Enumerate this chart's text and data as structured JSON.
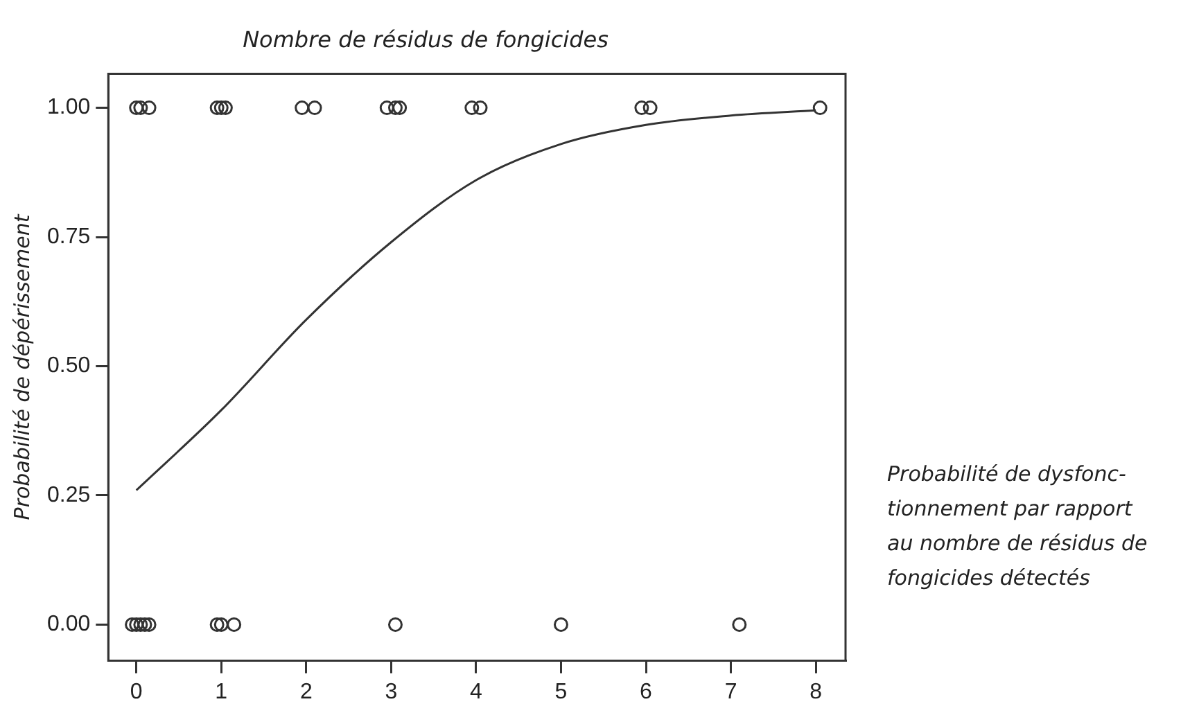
{
  "chart_data": {
    "type": "scatter",
    "title": "Nombre de résidus de fongicides",
    "ylabel": "Probabilité de dépérissement",
    "annotations": [
      "Probabilité de dysfonc-\ntionnement par rapport\nau nombre de résidus de\nfongicides détectés"
    ],
    "xlim": [
      -0.33,
      8.35
    ],
    "xticks": [
      0,
      1,
      2,
      3,
      4,
      5,
      6,
      7,
      8
    ],
    "ylim": [
      -0.07,
      1.066
    ],
    "yticks": [
      {
        "value": 0,
        "label": "0.00"
      },
      {
        "value": 0.25,
        "label": "0.25"
      },
      {
        "value": 0.5,
        "label": "0.50"
      },
      {
        "value": 0.75,
        "label": "0.75"
      },
      {
        "value": 1,
        "label": "1.00"
      }
    ],
    "grid": false,
    "legend": false,
    "series": [
      {
        "marker": "circle",
        "color": "#333333",
        "x": [
          0,
          0.05,
          0.15,
          0.95,
          1,
          1.05,
          1.95,
          2.1,
          2.95,
          3.05,
          3.1,
          3.95,
          4.05,
          5.95,
          6.05,
          8.05,
          -0.05,
          0,
          0.05,
          0.1,
          0.15,
          0.95,
          1,
          1.15,
          3.05,
          5,
          7.1
        ],
        "values": [
          1,
          1,
          1,
          1,
          1,
          1,
          1,
          1,
          1,
          1,
          1,
          1,
          1,
          1,
          1,
          1,
          0,
          0,
          0,
          0,
          0,
          0,
          0,
          0,
          0,
          0,
          0
        ]
      },
      {
        "type": "line",
        "marker": "none",
        "line_style": "solid",
        "color": "#333333",
        "x": [
          0,
          1,
          2,
          3,
          4,
          5,
          6,
          7,
          8
        ],
        "values": [
          0.26,
          0.415,
          0.59,
          0.74,
          0.86,
          0.93,
          0.967,
          0.985,
          0.995
        ]
      }
    ]
  }
}
